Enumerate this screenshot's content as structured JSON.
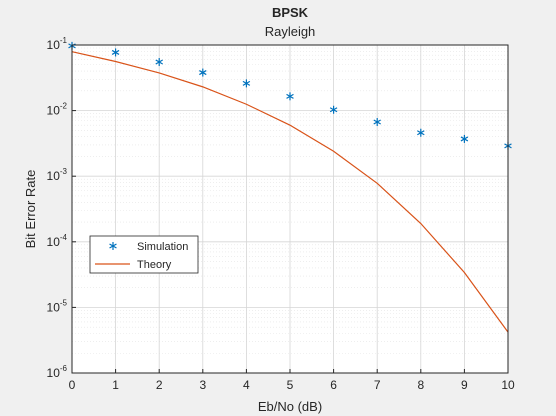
{
  "chart_data": {
    "type": "scatter",
    "title": "BPSK",
    "subtitle": "Rayleigh",
    "xlabel": "Eb/No (dB)",
    "ylabel": "Bit Error Rate",
    "xlim": [
      0,
      10
    ],
    "ylim": [
      1e-06,
      0.1
    ],
    "yscale": "log",
    "grid": true,
    "minor_grid": true,
    "legend_position": "lower-left",
    "x_ticks": [
      "0",
      "1",
      "2",
      "3",
      "4",
      "5",
      "6",
      "7",
      "8",
      "9",
      "10"
    ],
    "y_ticks": [
      {
        "base": "10",
        "exp": "-6"
      },
      {
        "base": "10",
        "exp": "-5"
      },
      {
        "base": "10",
        "exp": "-4"
      },
      {
        "base": "10",
        "exp": "-3"
      },
      {
        "base": "10",
        "exp": "-2"
      },
      {
        "base": "10",
        "exp": "-1"
      }
    ],
    "series": [
      {
        "name": "Simulation",
        "kind": "markers",
        "marker": "asterisk",
        "color": "#0072BD",
        "x": [
          0,
          1,
          2,
          3,
          4,
          5,
          6,
          7,
          8,
          9,
          10
        ],
        "y": [
          0.097,
          0.077,
          0.055,
          0.038,
          0.026,
          0.0165,
          0.0103,
          0.0067,
          0.0046,
          0.0037,
          0.0029
        ]
      },
      {
        "name": "Theory",
        "kind": "line",
        "color": "#D95319",
        "x": [
          0,
          1,
          2,
          3,
          4,
          5,
          6,
          7,
          8,
          9,
          10
        ],
        "y": [
          0.079,
          0.056,
          0.0375,
          0.023,
          0.0125,
          0.006,
          0.0024,
          0.00078,
          0.00019,
          3.4e-05,
          4.2e-06
        ]
      }
    ]
  }
}
